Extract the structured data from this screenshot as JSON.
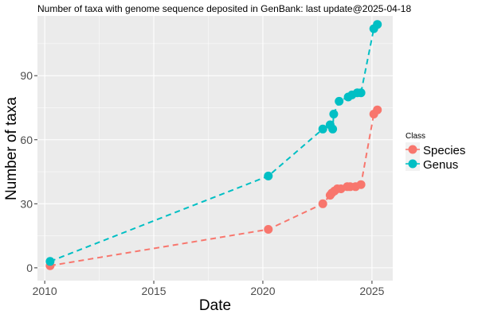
{
  "chart_data": {
    "type": "line",
    "title": "Number of taxa with genome sequence deposited in GenBank: last update@2025-04-18",
    "xlabel": "Date",
    "ylabel": "Number of taxa",
    "xlim": [
      "2009-09-01",
      "2025-12-15"
    ],
    "ylim": [
      -6,
      118
    ],
    "x_ticks": [
      "2010",
      "2015",
      "2020",
      "2025"
    ],
    "x_tick_dates": [
      "2010-01-01",
      "2015-01-01",
      "2020-01-01",
      "2025-01-01"
    ],
    "y_ticks": [
      "0",
      "30",
      "60",
      "90"
    ],
    "y_tick_values": [
      0,
      30,
      60,
      90
    ],
    "grid": true,
    "legend": {
      "title": "Class",
      "position": "right"
    },
    "series": [
      {
        "name": "Species",
        "color": "#F8766D",
        "line_style": "dashed",
        "x": [
          "2010-04-01",
          "2020-04-01",
          "2022-10-01",
          "2023-02-01",
          "2023-03-01",
          "2023-04-15",
          "2023-06-01",
          "2023-08-01",
          "2023-11-15",
          "2024-01-01",
          "2024-04-01",
          "2024-07-01",
          "2025-02-01",
          "2025-04-01"
        ],
        "y": [
          1,
          18,
          30,
          34,
          35,
          36,
          37,
          37,
          38,
          38,
          38,
          39,
          72,
          74
        ]
      },
      {
        "name": "Genus",
        "color": "#00BFC4",
        "line_style": "dashed",
        "x": [
          "2010-04-01",
          "2020-04-01",
          "2022-10-01",
          "2023-02-01",
          "2023-03-15",
          "2023-04-01",
          "2023-07-01",
          "2023-12-01",
          "2024-02-01",
          "2024-05-01",
          "2024-07-01",
          "2025-02-01",
          "2025-04-01"
        ],
        "y": [
          3,
          43,
          65,
          67,
          65,
          72,
          78,
          80,
          81,
          82,
          82,
          112,
          114
        ]
      }
    ]
  }
}
